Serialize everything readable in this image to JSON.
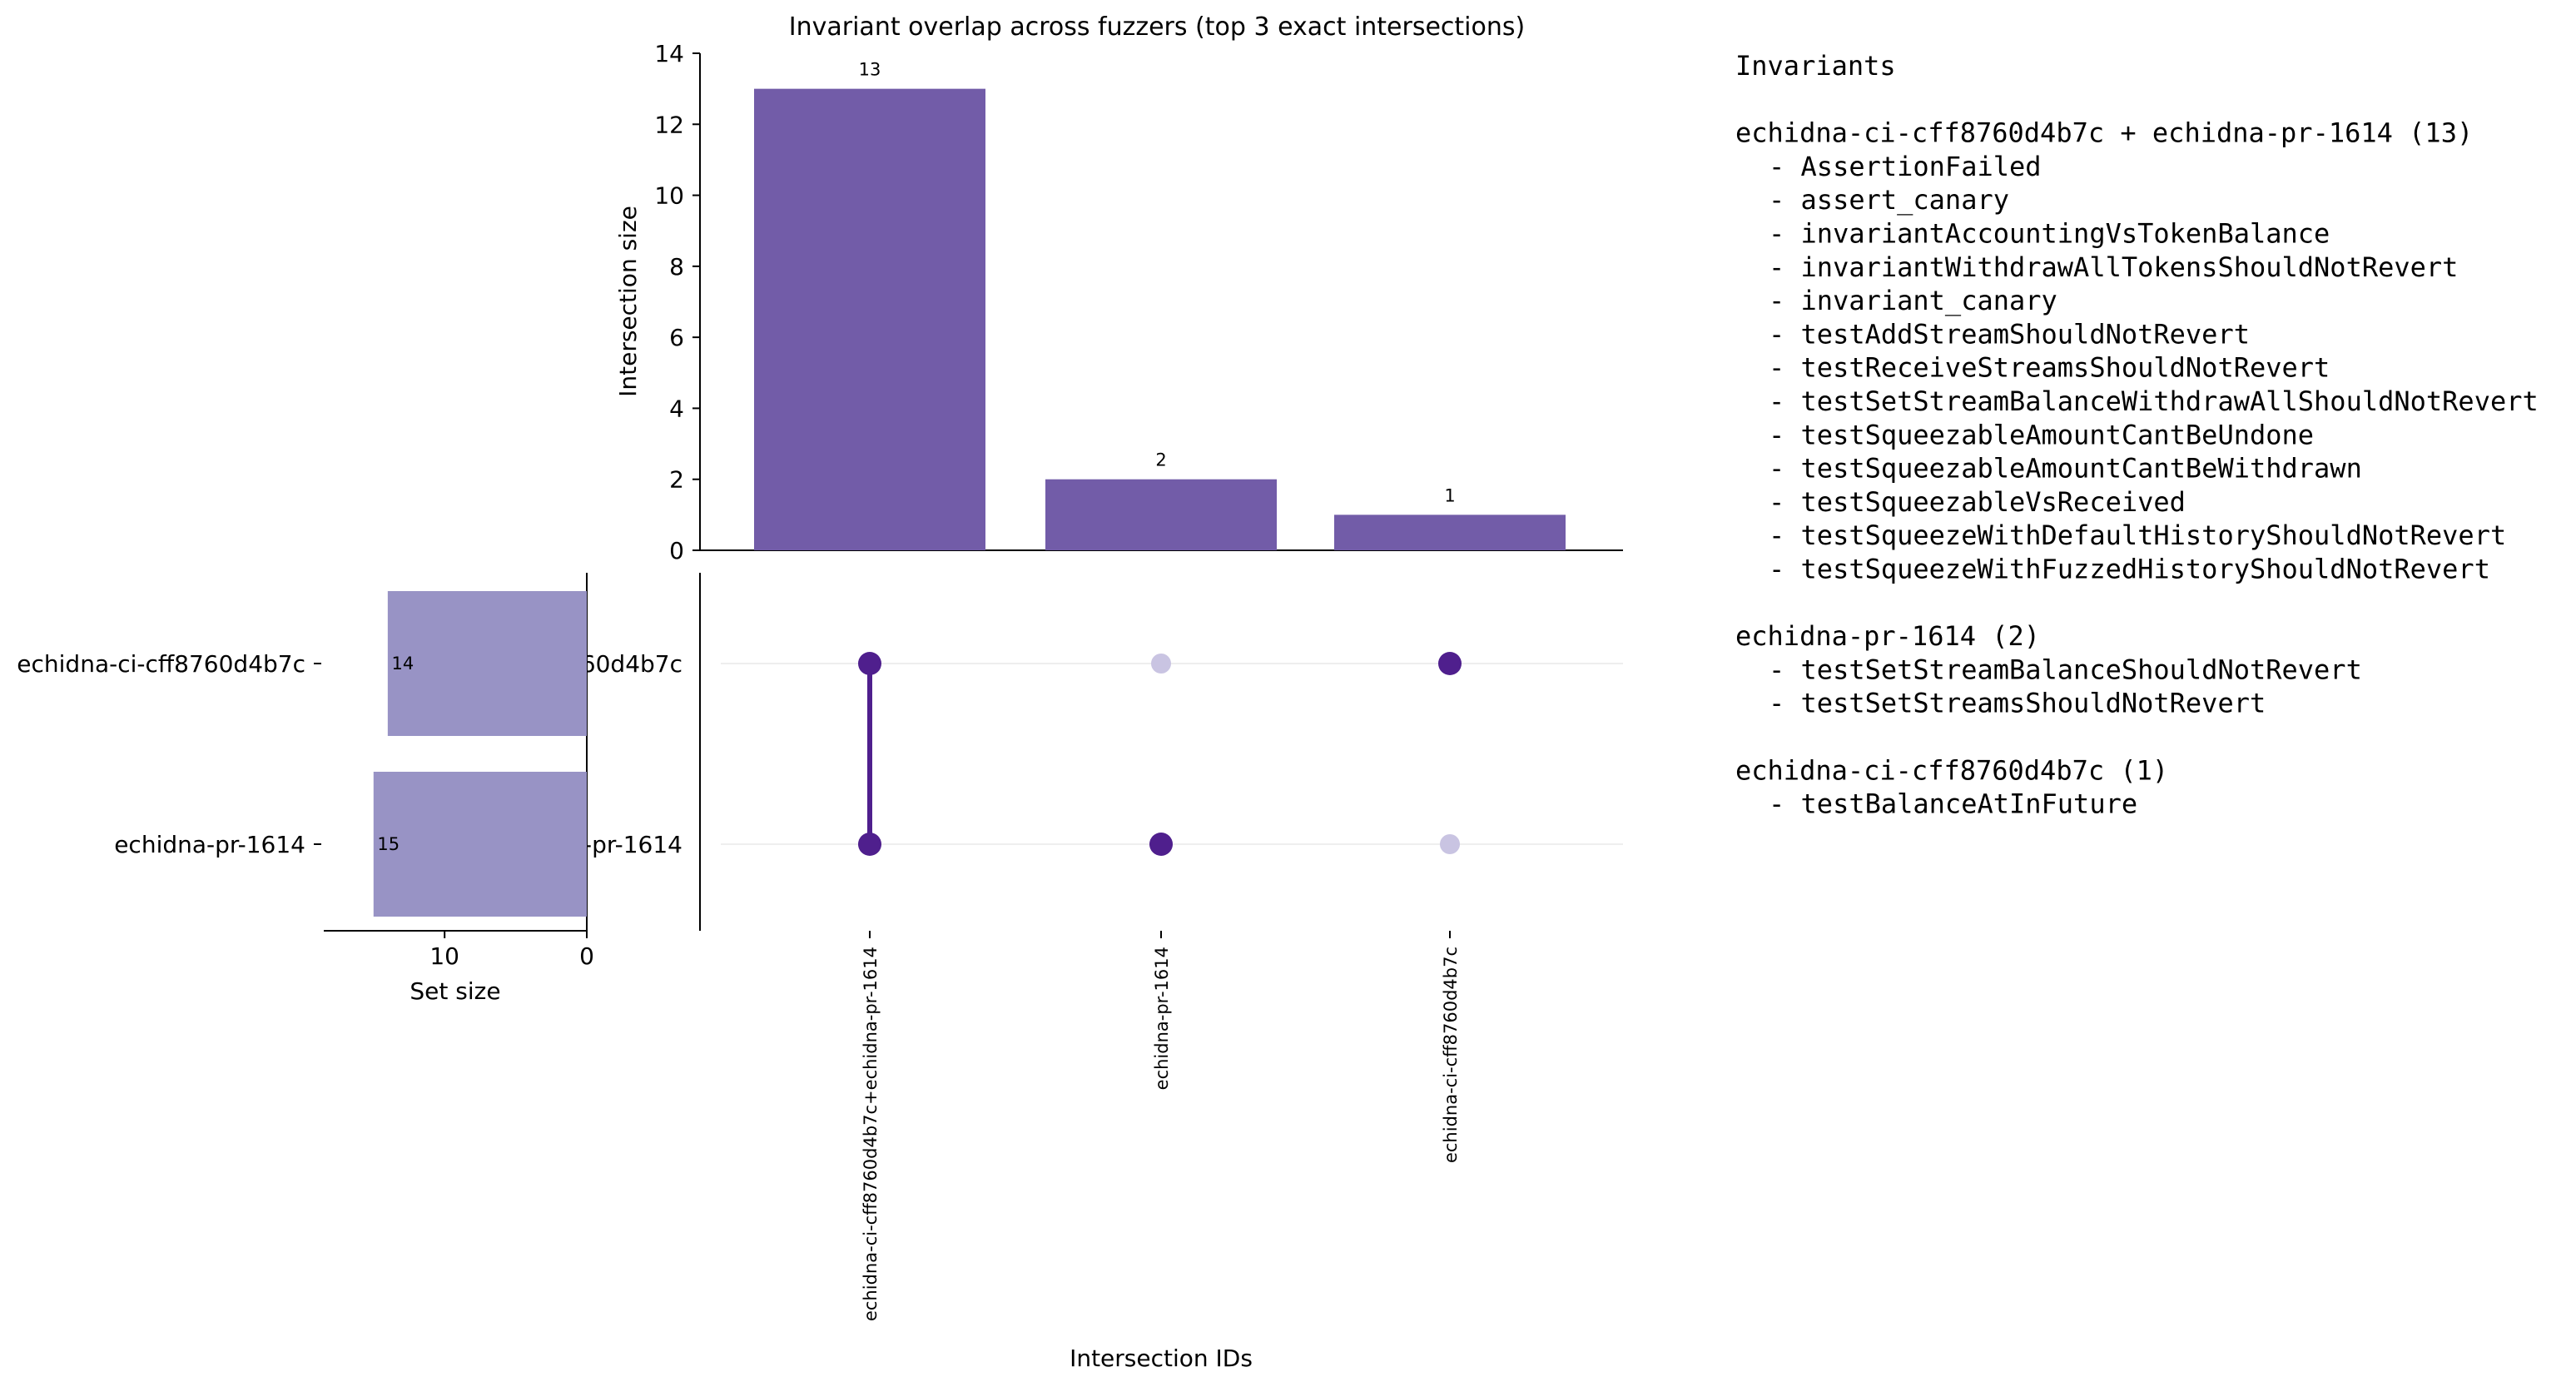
{
  "chart_data": [
    {
      "type": "bar",
      "title": "Invariant overlap across fuzzers (top 3 exact intersections)",
      "xlabel": "Intersection IDs",
      "ylabel": "Intersection size",
      "ylim": [
        0,
        14
      ],
      "yticks": [
        "0",
        "2",
        "4",
        "6",
        "8",
        "10",
        "12",
        "14"
      ],
      "categories": [
        "echidna-ci-cff8760d4b7c+echidna-pr-1614",
        "echidna-pr-1614",
        "echidna-ci-cff8760d4b7c"
      ],
      "values": [
        13,
        2,
        1
      ],
      "data_labels": [
        "13",
        "2",
        "1"
      ],
      "color": "#725ca8",
      "grid": false
    },
    {
      "type": "bar",
      "orientation": "horizontal",
      "xlabel": "Set size",
      "xticks": [
        "10",
        "0"
      ],
      "categories": [
        "echidna-ci-cff8760d4b7c",
        "echidna-pr-1614"
      ],
      "values": [
        14,
        15
      ],
      "data_labels": [
        "14",
        "15"
      ],
      "color": "#9893c5",
      "xlim": [
        0,
        18.5
      ]
    }
  ],
  "matrix": {
    "sets": [
      "echidna-ci-cff8760d4b7c",
      "echidna-pr-1614"
    ],
    "membership": [
      [
        true,
        true
      ],
      [
        false,
        true
      ],
      [
        true,
        false
      ]
    ],
    "active_color": "#4f1f8d",
    "inactive_color": "#c9c4e2"
  },
  "legend": {
    "title": "Invariants",
    "groups": [
      {
        "header": "echidna-ci-cff8760d4b7c + echidna-pr-1614 (13)",
        "items": [
          "- AssertionFailed",
          "- assert_canary",
          "- invariantAccountingVsTokenBalance",
          "- invariantWithdrawAllTokensShouldNotRevert",
          "- invariant_canary",
          "- testAddStreamShouldNotRevert",
          "- testReceiveStreamsShouldNotRevert",
          "- testSetStreamBalanceWithdrawAllShouldNotRevert",
          "- testSqueezableAmountCantBeUndone",
          "- testSqueezableAmountCantBeWithdrawn",
          "- testSqueezableVsReceived",
          "- testSqueezeWithDefaultHistoryShouldNotRevert",
          "- testSqueezeWithFuzzedHistoryShouldNotRevert"
        ]
      },
      {
        "header": "echidna-pr-1614 (2)",
        "items": [
          "- testSetStreamBalanceShouldNotRevert",
          "- testSetStreamsShouldNotRevert"
        ]
      },
      {
        "header": "echidna-ci-cff8760d4b7c (1)",
        "items": [
          "- testBalanceAtInFuture"
        ]
      }
    ]
  }
}
